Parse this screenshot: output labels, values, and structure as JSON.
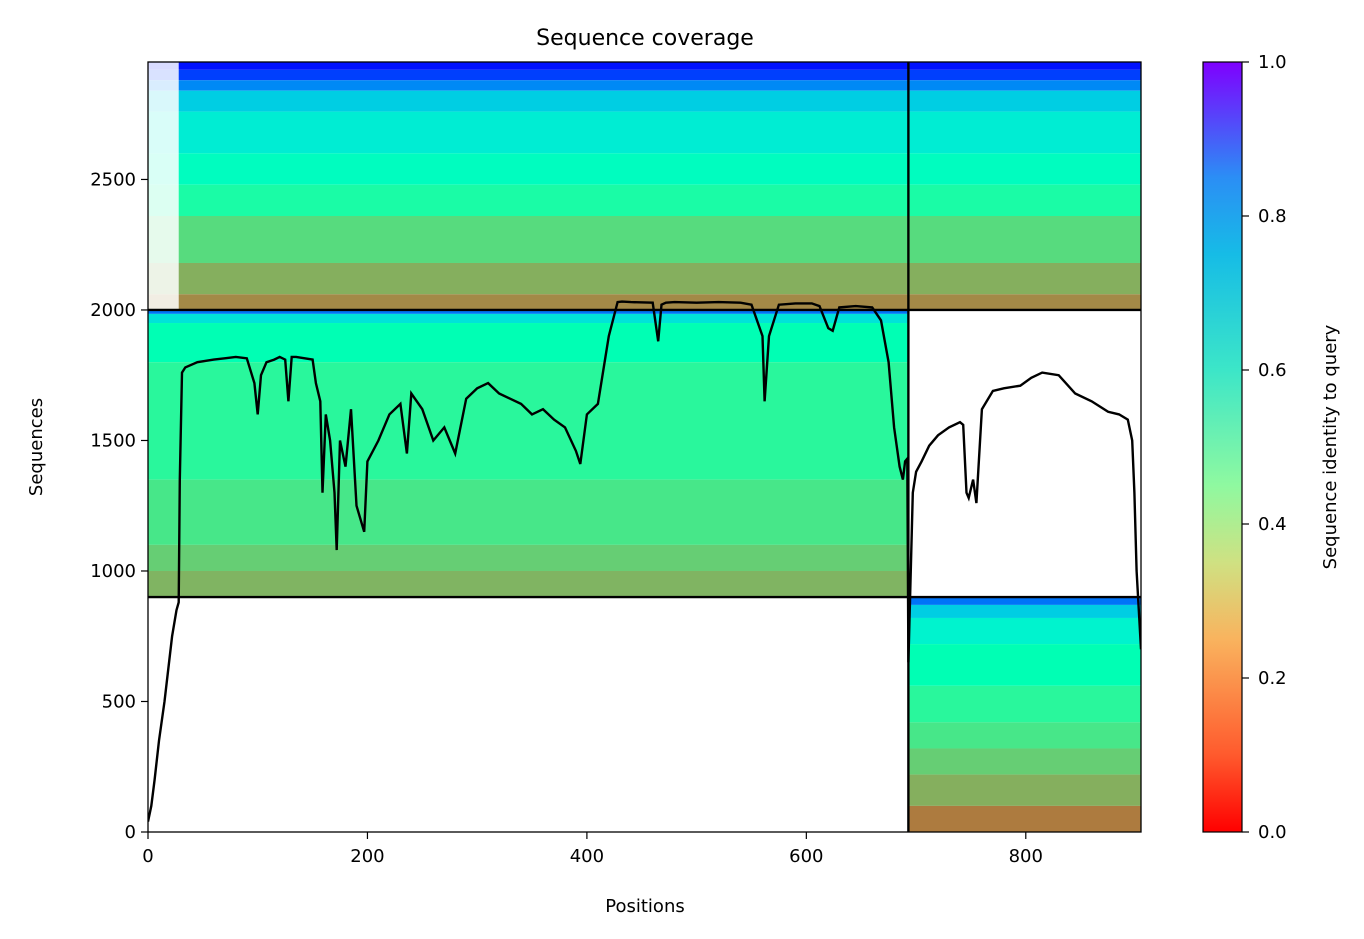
{
  "chart_data": {
    "type": "heatmap",
    "title": "Sequence coverage",
    "xlabel": "Positions",
    "ylabel": "Sequences",
    "xlim": [
      0,
      905
    ],
    "ylim": [
      0,
      2950
    ],
    "xticks": [
      0,
      200,
      400,
      600,
      800
    ],
    "yticks": [
      0,
      500,
      1000,
      1500,
      2000,
      2500
    ],
    "grid": false,
    "colormap": "rainbow_r",
    "colorbar": {
      "label": "Sequence identity to query",
      "range": [
        0,
        1
      ],
      "ticks": [
        0.0,
        0.2,
        0.4,
        0.6,
        0.8,
        1.0
      ],
      "tick_labels": [
        "0.0",
        "0.2",
        "0.4",
        "0.6",
        "0.8",
        "1.0"
      ]
    },
    "chain_boundaries": {
      "position": 693,
      "sequences": [
        900,
        2000
      ]
    },
    "msa_blocks": [
      {
        "name": "paired",
        "x_range": [
          0,
          905
        ],
        "y_range": [
          2000,
          2950
        ],
        "coverage_gaps": [
          [
            0,
            28
          ]
        ],
        "identity_bands": [
          {
            "y_range": [
              2920,
              2950
            ],
            "identity": 0.98
          },
          {
            "y_range": [
              2880,
              2920
            ],
            "identity": 0.92
          },
          {
            "y_range": [
              2840,
              2880
            ],
            "identity": 0.82
          },
          {
            "y_range": [
              2760,
              2840
            ],
            "identity": 0.7
          },
          {
            "y_range": [
              2600,
              2760
            ],
            "identity": 0.62
          },
          {
            "y_range": [
              2480,
              2600
            ],
            "identity": 0.54
          },
          {
            "y_range": [
              2360,
              2480
            ],
            "identity": 0.45
          },
          {
            "y_range": [
              2180,
              2360
            ],
            "identity": 0.33
          },
          {
            "y_range": [
              2060,
              2180
            ],
            "identity": 0.24
          },
          {
            "y_range": [
              2000,
              2060
            ],
            "identity": 0.18
          }
        ]
      },
      {
        "name": "chain-1",
        "x_range": [
          0,
          693
        ],
        "y_range": [
          900,
          2000
        ],
        "identity_bands": [
          {
            "y_range": [
              1985,
              2000
            ],
            "identity": 0.85
          },
          {
            "y_range": [
              1950,
              1985
            ],
            "identity": 0.65
          },
          {
            "y_range": [
              1800,
              1950
            ],
            "identity": 0.5
          },
          {
            "y_range": [
              1350,
              1800
            ],
            "identity": 0.42
          },
          {
            "y_range": [
              1100,
              1350
            ],
            "identity": 0.36
          },
          {
            "y_range": [
              1000,
              1100
            ],
            "identity": 0.3
          },
          {
            "y_range": [
              900,
              1000
            ],
            "identity": 0.25
          }
        ]
      },
      {
        "name": "chain-2",
        "x_range": [
          693,
          905
        ],
        "y_range": [
          0,
          900
        ],
        "identity_bands": [
          {
            "y_range": [
              870,
              900
            ],
            "identity": 0.85
          },
          {
            "y_range": [
              820,
              870
            ],
            "identity": 0.7
          },
          {
            "y_range": [
              720,
              820
            ],
            "identity": 0.6
          },
          {
            "y_range": [
              560,
              720
            ],
            "identity": 0.5
          },
          {
            "y_range": [
              420,
              560
            ],
            "identity": 0.42
          },
          {
            "y_range": [
              320,
              420
            ],
            "identity": 0.36
          },
          {
            "y_range": [
              220,
              320
            ],
            "identity": 0.3
          },
          {
            "y_range": [
              100,
              220
            ],
            "identity": 0.24
          },
          {
            "y_range": [
              0,
              100
            ],
            "identity": 0.16
          }
        ]
      }
    ],
    "coverage": {
      "x": [
        0,
        3,
        6,
        10,
        15,
        22,
        26,
        28,
        29,
        31,
        34,
        45,
        60,
        70,
        80,
        90,
        97,
        100,
        103,
        108,
        115,
        120,
        125,
        128,
        131,
        135,
        150,
        153,
        157,
        159,
        162,
        166,
        170,
        172,
        175,
        180,
        185,
        190,
        197,
        200,
        210,
        220,
        230,
        236,
        240,
        250,
        260,
        270,
        280,
        290,
        300,
        310,
        320,
        330,
        340,
        350,
        360,
        370,
        380,
        390,
        394,
        400,
        410,
        420,
        428,
        432,
        440,
        460,
        465,
        468,
        472,
        480,
        500,
        520,
        540,
        550,
        560,
        562,
        566,
        575,
        590,
        605,
        612,
        620,
        624,
        630,
        645,
        660,
        668,
        675,
        680,
        685,
        688,
        690,
        692,
        693,
        697,
        700,
        705,
        712,
        720,
        730,
        740,
        743,
        746,
        748,
        752,
        755,
        760,
        770,
        780,
        795,
        805,
        815,
        830,
        845,
        860,
        875,
        885,
        893,
        897,
        899,
        901,
        903,
        905
      ],
      "y": [
        40,
        100,
        200,
        350,
        500,
        750,
        850,
        880,
        1350,
        1760,
        1780,
        1800,
        1810,
        1815,
        1820,
        1815,
        1720,
        1600,
        1750,
        1800,
        1810,
        1820,
        1810,
        1650,
        1820,
        1820,
        1810,
        1720,
        1650,
        1300,
        1600,
        1500,
        1300,
        1080,
        1500,
        1400,
        1620,
        1250,
        1150,
        1420,
        1500,
        1600,
        1640,
        1450,
        1680,
        1620,
        1500,
        1550,
        1450,
        1660,
        1700,
        1720,
        1680,
        1660,
        1640,
        1600,
        1620,
        1580,
        1550,
        1460,
        1410,
        1600,
        1640,
        1900,
        2030,
        2032,
        2030,
        2028,
        1880,
        2020,
        2028,
        2030,
        2028,
        2030,
        2028,
        2020,
        1900,
        1650,
        1900,
        2020,
        2025,
        2025,
        2015,
        1930,
        1920,
        2010,
        2015,
        2010,
        1960,
        1800,
        1550,
        1400,
        1350,
        1420,
        1430,
        650,
        1300,
        1380,
        1420,
        1480,
        1520,
        1550,
        1570,
        1560,
        1300,
        1280,
        1350,
        1260,
        1620,
        1690,
        1700,
        1710,
        1740,
        1760,
        1750,
        1680,
        1650,
        1610,
        1600,
        1580,
        1500,
        1300,
        1000,
        850,
        700
      ]
    }
  }
}
